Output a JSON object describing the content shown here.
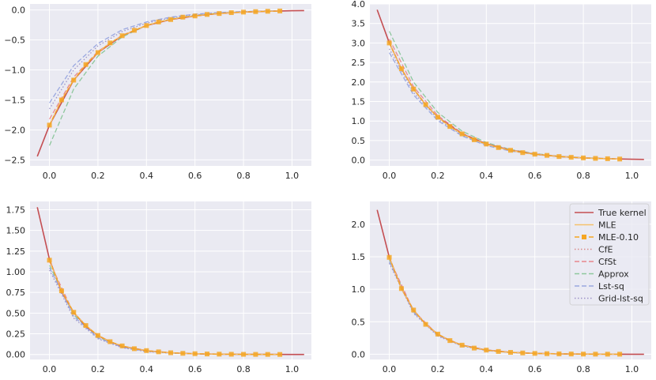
{
  "figure": {
    "background": "#ffffff",
    "panel_background": "#eaeaf2",
    "grid_color": "#ffffff"
  },
  "legend": {
    "placement": "upper-right",
    "entries": [
      {
        "label": "True kernel",
        "color": "#c44e52",
        "style": "solid",
        "marker": "none"
      },
      {
        "label": "MLE",
        "color": "#f5c16c",
        "style": "solid",
        "marker": "none"
      },
      {
        "label": "MLE-0.10",
        "color": "#f5a623",
        "style": "dashed",
        "marker": "square"
      },
      {
        "label": "CfE",
        "color": "#d98a8a",
        "style": "dotted",
        "marker": "none"
      },
      {
        "label": "CfSt",
        "color": "#e8868c",
        "style": "dashed",
        "marker": "none"
      },
      {
        "label": "Approx",
        "color": "#8ec79d",
        "style": "dashed",
        "marker": "none"
      },
      {
        "label": "Lst-sq",
        "color": "#9aa8e0",
        "style": "dashed",
        "marker": "none"
      },
      {
        "label": "Grid-lst-sq",
        "color": "#9d93c8",
        "style": "dotted",
        "marker": "none"
      }
    ]
  },
  "chart_data": [
    {
      "type": "line",
      "position": "top-left",
      "xlim": [
        -0.08,
        1.08
      ],
      "ylim": [
        -2.6,
        0.1
      ],
      "xticks": [
        "0.0",
        "0.2",
        "0.4",
        "0.6",
        "0.8",
        "1.0"
      ],
      "xtick_values": [
        0,
        0.2,
        0.4,
        0.6,
        0.8,
        1.0
      ],
      "yticks": [
        "−2.5",
        "−2.0",
        "−1.5",
        "−1.0",
        "−0.5",
        "0.0"
      ],
      "ytick_values": [
        -2.5,
        -2.0,
        -1.5,
        -1.0,
        -0.5,
        0.0
      ],
      "true_kernel": {
        "x": [
          -0.05,
          0.0,
          0.1,
          0.2,
          0.3,
          0.4,
          0.5,
          0.6,
          0.7,
          0.8,
          0.9,
          1.0,
          1.05
        ],
        "y": [
          -2.44,
          -1.92,
          -1.17,
          -0.71,
          -0.43,
          -0.26,
          -0.16,
          -0.1,
          -0.06,
          -0.036,
          -0.022,
          -0.013,
          -0.01
        ]
      },
      "mle_010": {
        "x": [
          0.0,
          0.05,
          0.1,
          0.15,
          0.2,
          0.25,
          0.3,
          0.35,
          0.4,
          0.45,
          0.5,
          0.55,
          0.6,
          0.65,
          0.7,
          0.75,
          0.8,
          0.85,
          0.9,
          0.95
        ],
        "y": [
          -1.92,
          -1.5,
          -1.17,
          -0.91,
          -0.71,
          -0.55,
          -0.43,
          -0.34,
          -0.26,
          -0.2,
          -0.16,
          -0.12,
          -0.1,
          -0.075,
          -0.06,
          -0.045,
          -0.036,
          -0.028,
          -0.022,
          -0.017
        ]
      },
      "approx": {
        "x": [
          0.0,
          0.1,
          0.2,
          0.3,
          0.4,
          0.5,
          0.6,
          0.7,
          0.8,
          0.9,
          0.95
        ],
        "y": [
          -2.26,
          -1.32,
          -0.77,
          -0.45,
          -0.26,
          -0.15,
          -0.09,
          -0.05,
          -0.03,
          -0.018,
          -0.013
        ]
      },
      "lst_sq": {
        "x": [
          0.0,
          0.1,
          0.2,
          0.3,
          0.4,
          0.5,
          0.6,
          0.7,
          0.8,
          0.9,
          0.95
        ],
        "y": [
          -1.55,
          -0.93,
          -0.56,
          -0.33,
          -0.2,
          -0.12,
          -0.07,
          -0.043,
          -0.026,
          -0.016,
          -0.012
        ]
      },
      "grid_lst_sq": {
        "x": [
          0.0,
          0.1,
          0.2,
          0.3,
          0.4,
          0.5,
          0.6,
          0.7,
          0.8,
          0.9,
          0.95
        ],
        "y": [
          -1.65,
          -1.0,
          -0.6,
          -0.36,
          -0.22,
          -0.13,
          -0.08,
          -0.048,
          -0.029,
          -0.017,
          -0.013
        ]
      },
      "cfst": {
        "x": [
          0.0,
          0.1,
          0.2,
          0.3,
          0.4,
          0.5,
          0.6,
          0.7,
          0.8,
          0.9,
          0.95
        ],
        "y": [
          -1.82,
          -1.12,
          -0.69,
          -0.42,
          -0.26,
          -0.16,
          -0.1,
          -0.06,
          -0.036,
          -0.022,
          -0.017
        ]
      }
    },
    {
      "type": "line",
      "position": "top-right",
      "xlim": [
        -0.08,
        1.08
      ],
      "ylim": [
        -0.15,
        4.0
      ],
      "xticks": [
        "0.0",
        "0.2",
        "0.4",
        "0.6",
        "0.8",
        "1.0"
      ],
      "xtick_values": [
        0,
        0.2,
        0.4,
        0.6,
        0.8,
        1.0
      ],
      "yticks": [
        "0.0",
        "0.5",
        "1.0",
        "1.5",
        "2.0",
        "2.5",
        "3.0",
        "3.5",
        "4.0"
      ],
      "ytick_values": [
        0,
        0.5,
        1.0,
        1.5,
        2.0,
        2.5,
        3.0,
        3.5,
        4.0
      ],
      "true_kernel": {
        "x": [
          -0.05,
          0.0,
          0.05,
          0.1,
          0.15,
          0.2,
          0.3,
          0.4,
          0.5,
          0.6,
          0.7,
          0.8,
          0.9,
          1.0,
          1.05
        ],
        "y": [
          3.85,
          3.0,
          2.34,
          1.82,
          1.42,
          1.1,
          0.67,
          0.41,
          0.25,
          0.15,
          0.09,
          0.055,
          0.034,
          0.02,
          0.016
        ]
      },
      "mle_010": {
        "x": [
          0.0,
          0.05,
          0.1,
          0.15,
          0.2,
          0.25,
          0.3,
          0.35,
          0.4,
          0.45,
          0.5,
          0.55,
          0.6,
          0.65,
          0.7,
          0.75,
          0.8,
          0.85,
          0.9,
          0.95
        ],
        "y": [
          3.0,
          2.34,
          1.82,
          1.42,
          1.1,
          0.86,
          0.67,
          0.52,
          0.41,
          0.32,
          0.25,
          0.19,
          0.15,
          0.12,
          0.09,
          0.07,
          0.055,
          0.043,
          0.034,
          0.026
        ]
      },
      "approx": {
        "x": [
          0.0,
          0.1,
          0.2,
          0.3,
          0.4,
          0.5,
          0.6,
          0.7,
          0.8,
          0.9,
          0.95
        ],
        "y": [
          3.3,
          2.0,
          1.22,
          0.74,
          0.45,
          0.27,
          0.165,
          0.1,
          0.06,
          0.037,
          0.029
        ]
      },
      "lst_sq": {
        "x": [
          0.0,
          0.1,
          0.2,
          0.3,
          0.4,
          0.5,
          0.6,
          0.7,
          0.8,
          0.9,
          0.95
        ],
        "y": [
          2.75,
          1.67,
          1.01,
          0.62,
          0.37,
          0.23,
          0.14,
          0.085,
          0.05,
          0.031,
          0.024
        ]
      },
      "grid_lst_sq": {
        "x": [
          0.0,
          0.1,
          0.2,
          0.3,
          0.4,
          0.5,
          0.6,
          0.7,
          0.8,
          0.9,
          0.95
        ],
        "y": [
          2.85,
          1.73,
          1.05,
          0.64,
          0.39,
          0.24,
          0.145,
          0.088,
          0.053,
          0.032,
          0.025
        ]
      },
      "cfst": {
        "x": [
          0.0,
          0.1,
          0.2,
          0.3,
          0.4,
          0.5,
          0.6,
          0.7,
          0.8,
          0.9,
          0.95
        ],
        "y": [
          3.1,
          1.88,
          1.14,
          0.69,
          0.42,
          0.26,
          0.155,
          0.094,
          0.057,
          0.035,
          0.027
        ]
      }
    },
    {
      "type": "line",
      "position": "bottom-left",
      "xlim": [
        -0.08,
        1.08
      ],
      "ylim": [
        -0.06,
        1.85
      ],
      "xticks": [
        "0.0",
        "0.2",
        "0.4",
        "0.6",
        "0.8",
        "1.0"
      ],
      "xtick_values": [
        0,
        0.2,
        0.4,
        0.6,
        0.8,
        1.0
      ],
      "yticks": [
        "0.00",
        "0.25",
        "0.50",
        "0.75",
        "1.00",
        "1.25",
        "1.50",
        "1.75"
      ],
      "ytick_values": [
        0,
        0.25,
        0.5,
        0.75,
        1.0,
        1.25,
        1.5,
        1.75
      ],
      "true_kernel": {
        "x": [
          -0.05,
          0.0,
          0.05,
          0.1,
          0.15,
          0.2,
          0.25,
          0.3,
          0.4,
          0.5,
          0.6,
          0.7,
          0.8,
          0.9,
          1.0,
          1.05
        ],
        "y": [
          1.78,
          1.15,
          0.76,
          0.51,
          0.34,
          0.23,
          0.155,
          0.1,
          0.046,
          0.021,
          0.009,
          0.004,
          0.002,
          0.001,
          0.0004,
          0.0003
        ]
      },
      "mle_010": {
        "x": [
          0.0,
          0.05,
          0.1,
          0.15,
          0.2,
          0.25,
          0.3,
          0.35,
          0.4,
          0.45,
          0.5,
          0.55,
          0.6,
          0.65,
          0.7,
          0.75,
          0.8,
          0.85,
          0.9,
          0.95
        ],
        "y": [
          1.14,
          0.77,
          0.51,
          0.35,
          0.23,
          0.155,
          0.104,
          0.07,
          0.047,
          0.032,
          0.021,
          0.014,
          0.0095,
          0.0064,
          0.0043,
          0.0029,
          0.002,
          0.0013,
          0.0009,
          0.0006
        ]
      },
      "approx": {
        "x": [
          0.0,
          0.1,
          0.2,
          0.3,
          0.4,
          0.5,
          0.6,
          0.7,
          0.8,
          0.9,
          0.95
        ],
        "y": [
          1.08,
          0.48,
          0.21,
          0.094,
          0.042,
          0.019,
          0.008,
          0.004,
          0.0017,
          0.0008,
          0.0005
        ]
      },
      "lst_sq": {
        "x": [
          0.0,
          0.1,
          0.2,
          0.3,
          0.4,
          0.5,
          0.6,
          0.7,
          0.8,
          0.9,
          0.95
        ],
        "y": [
          1.05,
          0.46,
          0.2,
          0.088,
          0.039,
          0.017,
          0.0075,
          0.0033,
          0.0015,
          0.0006,
          0.0004
        ]
      },
      "grid_lst_sq": {
        "x": [
          0.0,
          0.1,
          0.2,
          0.3,
          0.4,
          0.5,
          0.6,
          0.7,
          0.8,
          0.9,
          0.95
        ],
        "y": [
          1.02,
          0.44,
          0.19,
          0.082,
          0.035,
          0.015,
          0.0066,
          0.0029,
          0.0012,
          0.0005,
          0.0003
        ]
      },
      "cfst": {
        "x": [
          0.0,
          0.1,
          0.2,
          0.3,
          0.4,
          0.5,
          0.6,
          0.7,
          0.8,
          0.9,
          0.95
        ],
        "y": [
          1.12,
          0.5,
          0.22,
          0.098,
          0.044,
          0.02,
          0.0087,
          0.0039,
          0.0017,
          0.0008,
          0.0005
        ]
      }
    },
    {
      "type": "line",
      "position": "bottom-right",
      "xlim": [
        -0.08,
        1.08
      ],
      "ylim": [
        -0.08,
        2.35
      ],
      "xticks": [
        "0.0",
        "0.2",
        "0.4",
        "0.6",
        "0.8",
        "1.0"
      ],
      "xtick_values": [
        0,
        0.2,
        0.4,
        0.6,
        0.8,
        1.0
      ],
      "yticks": [
        "0.0",
        "0.5",
        "1.0",
        "1.5",
        "2.0"
      ],
      "ytick_values": [
        0,
        0.5,
        1.0,
        1.5,
        2.0
      ],
      "true_kernel": {
        "x": [
          -0.05,
          0.0,
          0.05,
          0.1,
          0.15,
          0.2,
          0.25,
          0.3,
          0.4,
          0.5,
          0.6,
          0.7,
          0.8,
          0.9,
          1.0,
          1.05
        ],
        "y": [
          2.22,
          1.49,
          1.01,
          0.68,
          0.46,
          0.31,
          0.21,
          0.14,
          0.064,
          0.029,
          0.013,
          0.006,
          0.0027,
          0.0012,
          0.0006,
          0.0004
        ]
      },
      "mle_010": {
        "x": [
          0.0,
          0.05,
          0.1,
          0.15,
          0.2,
          0.25,
          0.3,
          0.35,
          0.4,
          0.45,
          0.5,
          0.55,
          0.6,
          0.65,
          0.7,
          0.75,
          0.8,
          0.85,
          0.9,
          0.95
        ],
        "y": [
          1.49,
          1.01,
          0.68,
          0.46,
          0.31,
          0.21,
          0.14,
          0.095,
          0.064,
          0.043,
          0.029,
          0.02,
          0.013,
          0.009,
          0.006,
          0.004,
          0.0027,
          0.0018,
          0.0012,
          0.0008
        ]
      },
      "approx": {
        "x": [
          0.0,
          0.1,
          0.2,
          0.3,
          0.4,
          0.5,
          0.6,
          0.7,
          0.8,
          0.9,
          0.95
        ],
        "y": [
          1.45,
          0.66,
          0.3,
          0.135,
          0.061,
          0.028,
          0.0125,
          0.0057,
          0.0026,
          0.0012,
          0.0008
        ]
      },
      "lst_sq": {
        "x": [
          0.0,
          0.1,
          0.2,
          0.3,
          0.4,
          0.5,
          0.6,
          0.7,
          0.8,
          0.9,
          0.95
        ],
        "y": [
          1.42,
          0.64,
          0.29,
          0.13,
          0.058,
          0.026,
          0.012,
          0.0053,
          0.0024,
          0.0011,
          0.0007
        ]
      },
      "grid_lst_sq": {
        "x": [
          0.0,
          0.1,
          0.2,
          0.3,
          0.4,
          0.5,
          0.6,
          0.7,
          0.8,
          0.9,
          0.95
        ],
        "y": [
          1.4,
          0.63,
          0.28,
          0.125,
          0.056,
          0.025,
          0.011,
          0.005,
          0.0022,
          0.001,
          0.0007
        ]
      },
      "cfst": {
        "x": [
          0.0,
          0.1,
          0.2,
          0.3,
          0.4,
          0.5,
          0.6,
          0.7,
          0.8,
          0.9,
          0.95
        ],
        "y": [
          1.47,
          0.67,
          0.3,
          0.137,
          0.062,
          0.028,
          0.0127,
          0.0058,
          0.0026,
          0.0012,
          0.0008
        ]
      }
    }
  ]
}
